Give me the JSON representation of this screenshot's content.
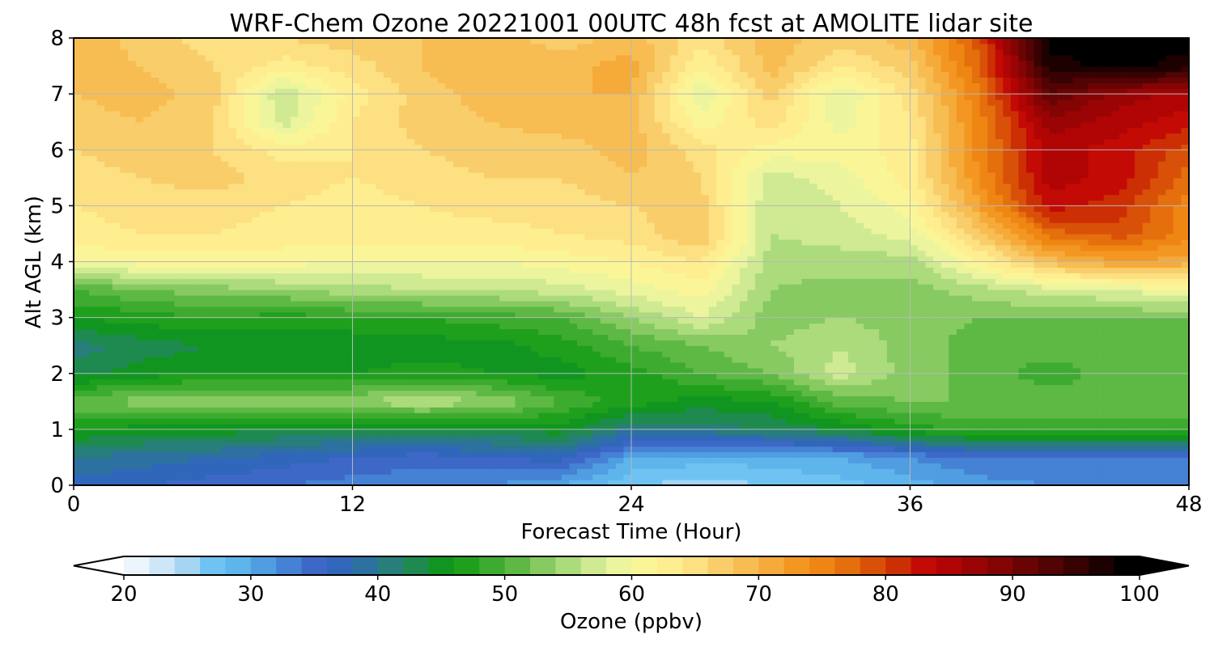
{
  "chart_data": {
    "type": "heatmap",
    "title": "WRF-Chem Ozone  20221001 00UTC 48h fcst at AMOLITE lidar site",
    "xlabel": "Forecast Time (Hour)",
    "ylabel": "Alt AGL (km)",
    "xlim": [
      0,
      48
    ],
    "ylim": [
      0,
      8
    ],
    "x_ticks": [
      0,
      12,
      24,
      36,
      48
    ],
    "y_ticks": [
      0,
      1,
      2,
      3,
      4,
      5,
      6,
      7,
      8
    ],
    "grid": true,
    "x_hours": [
      0,
      3,
      6,
      9,
      12,
      15,
      18,
      21,
      24,
      27,
      30,
      33,
      36,
      39,
      42,
      45,
      48
    ],
    "y_km": [
      0,
      0.5,
      1,
      1.5,
      2,
      2.5,
      3,
      3.5,
      4,
      4.5,
      5,
      5.5,
      6,
      6.5,
      7,
      7.5,
      8
    ],
    "values_ppbv": [
      [
        38,
        37,
        36,
        35,
        34,
        33,
        33,
        31,
        27,
        26,
        27,
        28,
        30,
        32,
        33,
        34,
        34
      ],
      [
        41,
        40,
        39,
        38,
        37,
        36,
        37,
        38,
        31,
        30,
        30,
        31,
        33,
        35,
        35,
        35,
        35
      ],
      [
        47,
        46,
        46,
        45,
        44,
        44,
        45,
        46,
        41,
        42,
        43,
        45,
        48,
        50,
        50,
        50,
        50
      ],
      [
        53,
        54,
        55,
        54,
        55,
        57,
        55,
        51,
        48,
        46,
        47,
        52,
        53,
        53,
        52,
        52,
        53
      ],
      [
        44,
        46,
        47,
        47,
        47,
        48,
        47,
        46,
        48,
        51,
        53,
        58,
        54,
        52,
        50,
        52,
        53
      ],
      [
        42,
        44,
        45,
        45,
        45,
        46,
        46,
        48,
        51,
        53,
        55,
        57,
        54,
        52,
        52,
        52,
        52
      ],
      [
        47,
        48,
        49,
        48,
        49,
        49,
        50,
        51,
        55,
        59,
        54,
        55,
        54,
        53,
        53,
        53,
        53
      ],
      [
        51,
        53,
        54,
        55,
        56,
        57,
        57,
        58,
        60,
        62,
        55,
        54,
        54,
        56,
        58,
        59,
        61
      ],
      [
        61,
        62,
        62,
        62,
        61,
        61,
        61,
        62,
        63,
        65,
        56,
        56,
        56,
        63,
        70,
        73,
        72
      ],
      [
        64,
        65,
        65,
        64,
        64,
        64,
        64,
        65,
        66,
        69,
        57,
        58,
        60,
        68,
        78,
        80,
        76
      ],
      [
        65,
        66,
        66,
        65,
        64,
        65,
        66,
        66,
        67,
        68,
        57,
        59,
        62,
        73,
        84,
        82,
        76
      ],
      [
        66,
        67,
        68,
        66,
        65,
        66,
        67,
        67,
        69,
        67,
        58,
        60,
        64,
        75,
        86,
        84,
        78
      ],
      [
        67,
        68,
        67,
        64,
        65,
        67,
        68,
        68,
        70,
        66,
        62,
        62,
        64,
        76,
        86,
        84,
        80
      ],
      [
        68,
        69,
        67,
        58,
        65,
        68,
        69,
        70,
        70,
        62,
        66,
        60,
        65,
        76,
        88,
        86,
        84
      ],
      [
        69,
        70,
        68,
        57,
        64,
        68,
        70,
        71,
        71,
        59,
        68,
        59,
        66,
        77,
        93,
        88,
        86
      ],
      [
        70,
        69,
        67,
        64,
        66,
        69,
        71,
        70,
        72,
        63,
        70,
        65,
        68,
        79,
        98,
        100,
        98
      ],
      [
        71,
        68,
        66,
        67,
        68,
        69,
        70,
        68,
        70,
        66,
        70,
        68,
        70,
        80,
        100,
        100,
        100
      ]
    ],
    "colorbar": {
      "label": "Ozone  (ppbv)",
      "min": 20,
      "max": 100,
      "step": 2,
      "ticks": [
        20,
        30,
        40,
        50,
        60,
        70,
        80,
        90,
        100
      ],
      "extend": "both",
      "colors": [
        "#ffffff",
        "#e6f2fb",
        "#b6dcf5",
        "#6ec3f2",
        "#58b0ea",
        "#4789d8",
        "#3e68c8",
        "#2d67b5",
        "#2a7a88",
        "#1e8a4f",
        "#0b9a10",
        "#32a628",
        "#5db944",
        "#93d06a",
        "#c5e68e",
        "#ecf59e",
        "#fff695",
        "#fde68a",
        "#f9cd6a",
        "#f6b74a",
        "#f49c27",
        "#ef8613",
        "#e2670a",
        "#d03b05",
        "#c30a04",
        "#a90304",
        "#8c0404",
        "#6a0404",
        "#4a0202",
        "#260101",
        "#000000"
      ]
    }
  }
}
